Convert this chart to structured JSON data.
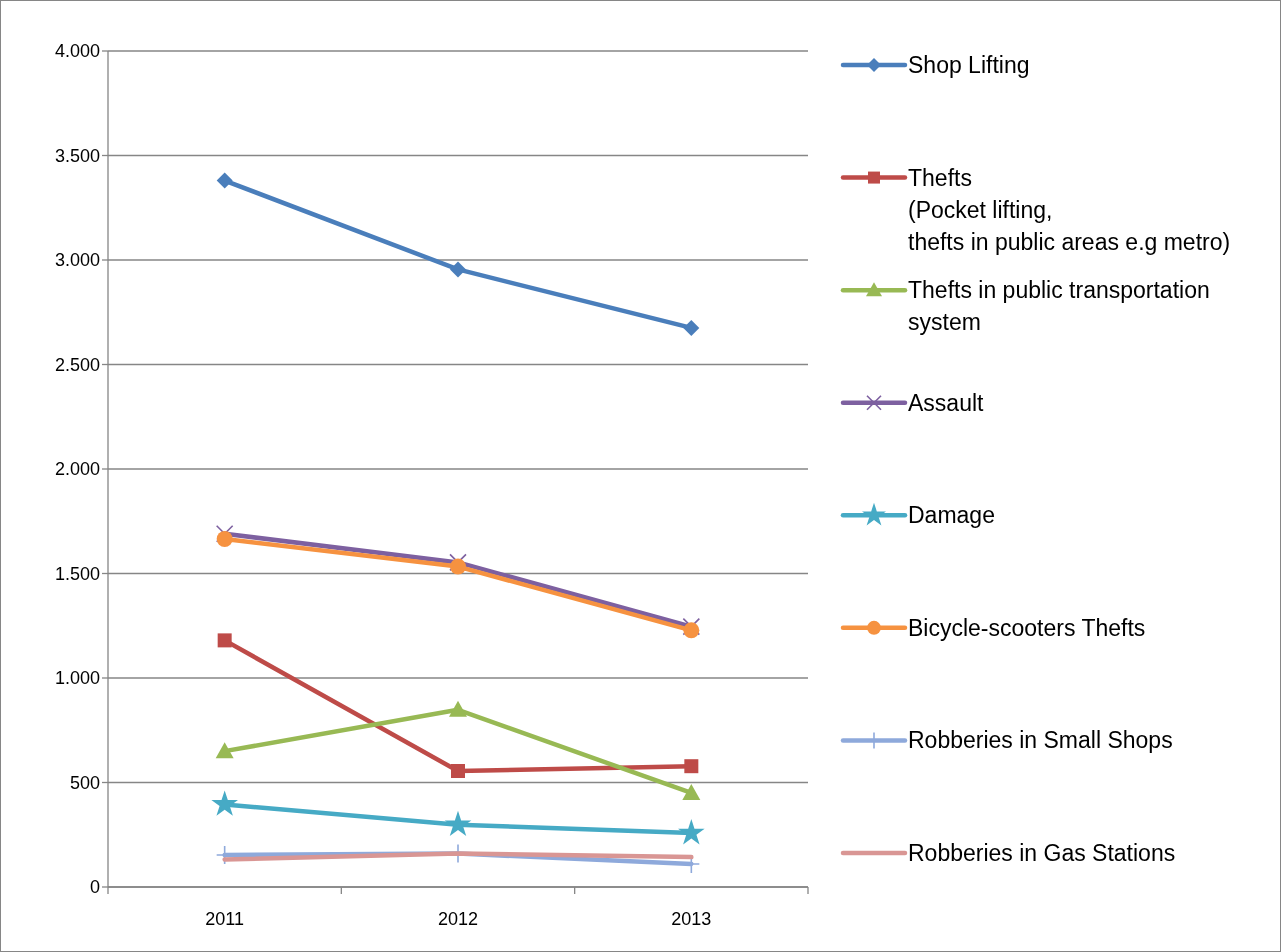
{
  "chart_data": {
    "type": "line",
    "categories": [
      "2011",
      "2012",
      "2013"
    ],
    "series": [
      {
        "name": "Shop Lifting",
        "color": "#4A7EBB",
        "marker": "diamond",
        "values": [
          3380,
          2955,
          2675
        ]
      },
      {
        "name": "Thefts\n(Pocket lifting,\nthefts in public areas e.g metro)",
        "color": "#BE4B48",
        "marker": "square",
        "values": [
          1180,
          555,
          578
        ]
      },
      {
        "name": "Thefts in public transportation system",
        "color": "#98B954",
        "marker": "triangle",
        "values": [
          650,
          848,
          450
        ]
      },
      {
        "name": "Assault",
        "color": "#7D60A0",
        "marker": "cross",
        "values": [
          1690,
          1553,
          1246
        ]
      },
      {
        "name": "Damage",
        "color": "#46AAC5",
        "marker": "star",
        "values": [
          395,
          298,
          258
        ]
      },
      {
        "name": "Bicycle-scooters Thefts",
        "color": "#F69240",
        "marker": "circle",
        "values": [
          1665,
          1533,
          1228
        ]
      },
      {
        "name": "Robberies in Small Shops",
        "color": "#8EA9DB",
        "marker": "plus",
        "values": [
          153,
          160,
          110
        ]
      },
      {
        "name": "Robberies in Gas Stations",
        "color": "#D99694",
        "marker": "none",
        "values": [
          132,
          160,
          143
        ]
      }
    ],
    "ylim": [
      0,
      4000
    ],
    "yticks": [
      0,
      500,
      {
        "value": 1000,
        "label": "1.000"
      },
      {
        "value": 1500,
        "label": "1.500"
      },
      {
        "value": 2000,
        "label": "2.000"
      },
      {
        "value": 2500,
        "label": "2.500"
      },
      {
        "value": 3000,
        "label": "3.000"
      },
      {
        "value": 3500,
        "label": "3.500"
      },
      {
        "value": 4000,
        "label": "4.000"
      }
    ],
    "grid": "y",
    "legend": "right"
  }
}
